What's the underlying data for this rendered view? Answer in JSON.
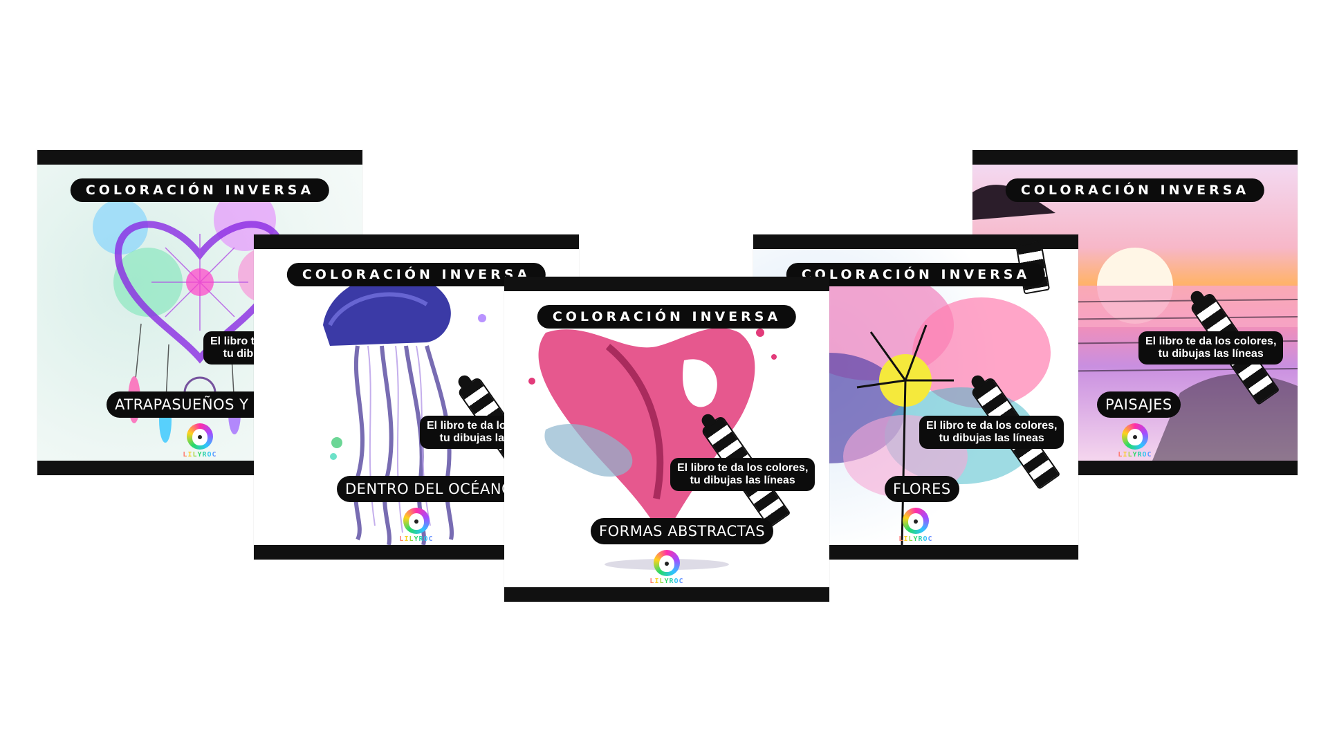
{
  "covers": [
    {
      "series_title": "COLORACIÓN INVERSA",
      "slogan_line1": "El libro te da los colores,",
      "slogan_line2": "tu dibujas las líneas",
      "label": "ATRAPASUEÑOS Y PLUMAS",
      "logo_text": "LILYROC"
    },
    {
      "series_title": "COLORACIÓN INVERSA",
      "slogan_line1": "El libro te da los colores,",
      "slogan_line2": "tu dibujas las líneas",
      "label": "DENTRO DEL OCÉANO",
      "logo_text": "LILYROC"
    },
    {
      "series_title": "COLORACIÓN INVERSA",
      "slogan_line1": "El libro te da los colores,",
      "slogan_line2": "tu dibujas las líneas",
      "label": "FORMAS ABSTRACTAS",
      "logo_text": "LILYROC"
    },
    {
      "series_title": "COLORACIÓN INVERSA",
      "slogan_line1": "El libro te da los colores,",
      "slogan_line2": "tu dibujas las líneas",
      "label": "FLORES",
      "logo_text": "LILYROC"
    },
    {
      "series_title": "COLORACIÓN INVERSA",
      "slogan_line1": "El libro te da los colores,",
      "slogan_line2": "tu dibujas las líneas",
      "label": "PAISAJES",
      "logo_text": "LILYROC"
    }
  ]
}
